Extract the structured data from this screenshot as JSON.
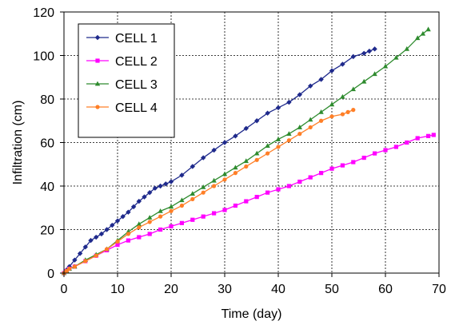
{
  "chart_data": {
    "type": "line",
    "title": "",
    "xlabel": "Time (day)",
    "ylabel": "Infiltration (cm)",
    "xlim": [
      0,
      70
    ],
    "ylim": [
      0,
      120
    ],
    "xticks": [
      0,
      10,
      20,
      30,
      40,
      50,
      60,
      70
    ],
    "yticks": [
      0,
      20,
      40,
      60,
      80,
      100,
      120
    ],
    "grid": true,
    "legend_position": "top-left",
    "series": [
      {
        "name": "CELL 1",
        "color": "#1F2A8C",
        "marker": "diamond",
        "x": [
          0,
          0.5,
          1,
          2,
          3,
          4,
          5,
          6,
          7,
          8,
          9,
          10,
          11,
          12,
          13,
          14,
          15,
          16,
          17,
          18,
          19,
          20,
          22,
          24,
          26,
          28,
          30,
          32,
          34,
          36,
          38,
          40,
          42,
          44,
          46,
          48,
          50,
          52,
          54,
          56,
          57,
          58
        ],
        "y": [
          0,
          1.5,
          3,
          6,
          9,
          12,
          15,
          16.5,
          18,
          20,
          22,
          24,
          26,
          28,
          30.5,
          33,
          35,
          37,
          39,
          40,
          41,
          42,
          45,
          49,
          53,
          56.5,
          60,
          63,
          66.5,
          70,
          73.5,
          76,
          78.5,
          82,
          86,
          89,
          93,
          96,
          99.5,
          101,
          102,
          103
        ]
      },
      {
        "name": "CELL 2",
        "color": "#FF00FF",
        "marker": "square",
        "x": [
          0,
          0.5,
          1,
          2,
          4,
          6,
          8,
          10,
          12,
          14,
          16,
          18,
          20,
          22,
          24,
          26,
          28,
          30,
          32,
          34,
          36,
          38,
          40,
          42,
          44,
          46,
          48,
          50,
          52,
          54,
          56,
          58,
          60,
          62,
          64,
          66,
          68,
          69
        ],
        "y": [
          0,
          1,
          2,
          3,
          5.5,
          8,
          10.5,
          13,
          15,
          16.5,
          18,
          20,
          21.5,
          23,
          24.5,
          26,
          27.5,
          29,
          31,
          33,
          35,
          37,
          38.5,
          40,
          42,
          44,
          46,
          48,
          49.5,
          51,
          53,
          55,
          56.5,
          58,
          60,
          62,
          63,
          63.5
        ]
      },
      {
        "name": "CELL 3",
        "color": "#2E8B2E",
        "marker": "triangle",
        "x": [
          0,
          0.5,
          1,
          2,
          4,
          6,
          8,
          10,
          12,
          14,
          16,
          18,
          20,
          22,
          24,
          26,
          28,
          30,
          32,
          34,
          36,
          38,
          40,
          42,
          44,
          46,
          48,
          50,
          52,
          54,
          56,
          58,
          60,
          62,
          64,
          66,
          67,
          68
        ],
        "y": [
          0,
          1,
          2,
          3,
          6,
          8.5,
          11,
          15,
          19,
          22.5,
          25.5,
          28.5,
          30.5,
          33.5,
          36.5,
          39.5,
          42.5,
          45.5,
          48.5,
          51.5,
          55,
          58.5,
          61.5,
          64,
          67,
          70.5,
          74,
          77.5,
          81,
          84.5,
          88,
          91.5,
          95,
          99,
          103,
          108,
          110,
          112
        ]
      },
      {
        "name": "CELL 4",
        "color": "#FF7F27",
        "marker": "circle",
        "x": [
          0,
          0.5,
          1,
          2,
          4,
          6,
          8,
          10,
          12,
          14,
          16,
          18,
          20,
          22,
          24,
          26,
          28,
          30,
          32,
          34,
          36,
          38,
          40,
          42,
          44,
          46,
          48,
          50,
          52,
          53,
          54
        ],
        "y": [
          0,
          1,
          2,
          3,
          5.5,
          8,
          11,
          14.5,
          18,
          21,
          23.5,
          26,
          28.5,
          31,
          34,
          37,
          40,
          43,
          46,
          49,
          52,
          55,
          58,
          61,
          64,
          67,
          70,
          72,
          73,
          74,
          75
        ]
      }
    ]
  }
}
